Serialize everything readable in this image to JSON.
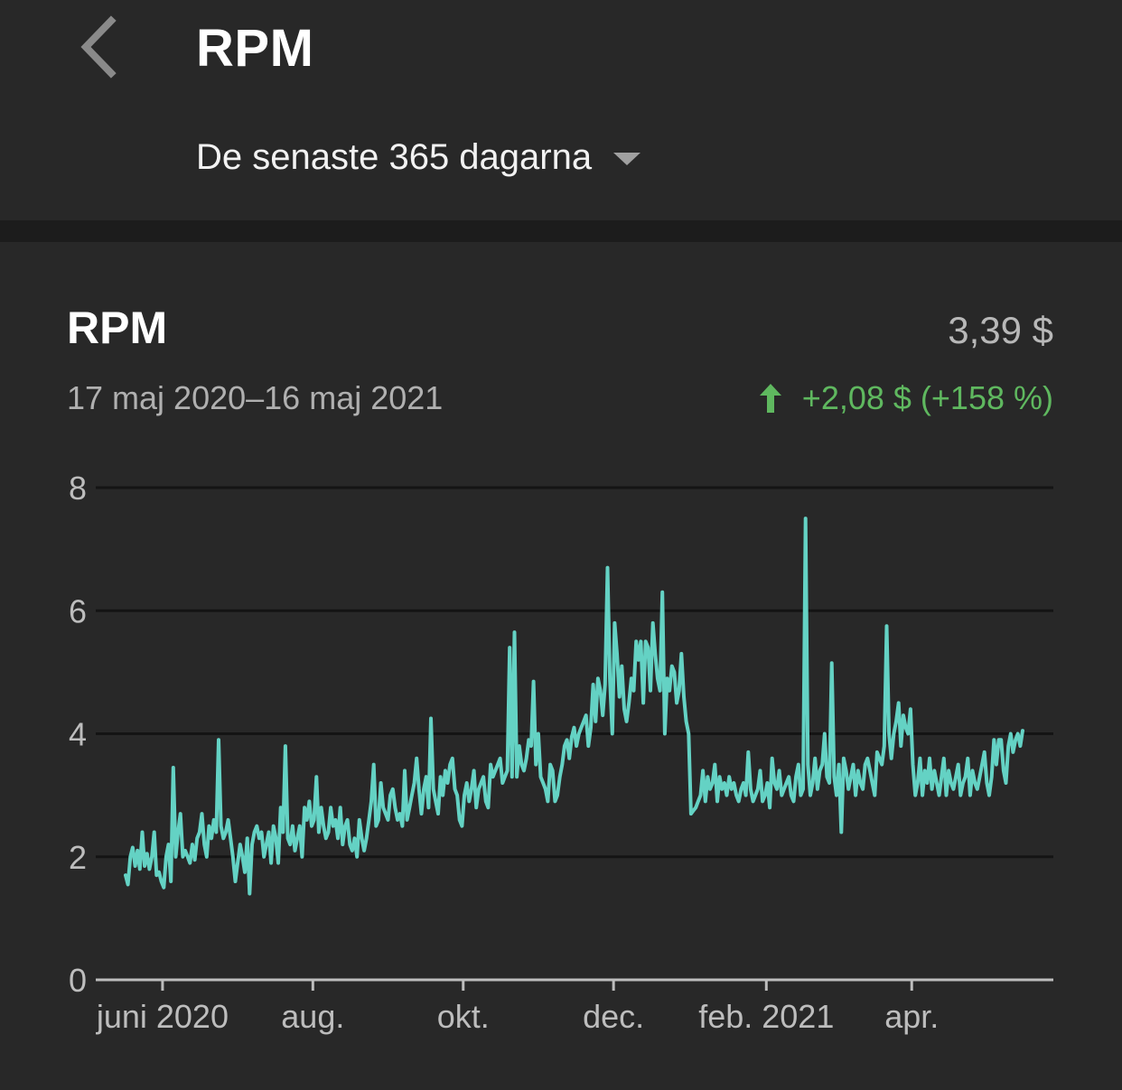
{
  "header": {
    "title": "RPM",
    "period": "De senaste 365 dagarna"
  },
  "card": {
    "title": "RPM",
    "value": "3,39 $",
    "date_range": "17 maj 2020–16 maj 2021",
    "change": "+2,08 $ (+158 %)"
  },
  "colors": {
    "background": "#282828",
    "line": "#64d2c4",
    "positive": "#5fb85f",
    "grid": "#141414",
    "axis": "#bdbdbd"
  },
  "icons": {
    "back": "chevron-left-icon",
    "dropdown": "caret-down-icon",
    "change": "arrow-up-icon"
  },
  "chart_data": {
    "type": "line",
    "title": "RPM",
    "ylim": [
      0,
      8
    ],
    "yticks": [
      "0",
      "2",
      "4",
      "6",
      "8"
    ],
    "xlim": [
      "2020-05-17",
      "2021-05-16"
    ],
    "xticks": [
      {
        "label": "juni 2020",
        "date": "2020-06-01"
      },
      {
        "label": "aug.",
        "date": "2020-08-01"
      },
      {
        "label": "okt.",
        "date": "2020-10-01"
      },
      {
        "label": "dec.",
        "date": "2020-12-01"
      },
      {
        "label": "feb. 2021",
        "date": "2021-02-01"
      },
      {
        "label": "apr.",
        "date": "2021-04-01"
      }
    ],
    "grid": true,
    "legend": "none",
    "start_date": "2020-05-17",
    "series": [
      {
        "values": [
          1.7,
          1.55,
          2.0,
          2.15,
          1.85,
          2.1,
          1.8,
          2.4,
          1.85,
          2.05,
          1.8,
          2.0,
          2.4,
          1.7,
          1.75,
          1.6,
          1.5,
          2.0,
          2.2,
          1.6,
          3.45,
          2.0,
          2.4,
          2.7,
          2.0,
          2.1,
          2.0,
          1.9,
          2.2,
          1.95,
          2.3,
          2.4,
          2.7,
          2.2,
          2.0,
          2.5,
          2.3,
          2.6,
          2.4,
          3.9,
          2.5,
          2.3,
          2.4,
          2.6,
          2.3,
          2.0,
          1.6,
          1.9,
          2.2,
          2.0,
          1.75,
          2.3,
          1.4,
          2.2,
          2.4,
          2.5,
          2.3,
          2.4,
          2.0,
          2.2,
          2.4,
          1.9,
          2.5,
          2.3,
          1.9,
          2.8,
          2.4,
          3.8,
          2.3,
          2.2,
          2.5,
          2.1,
          2.3,
          2.5,
          2.0,
          2.8,
          2.6,
          2.9,
          2.5,
          2.6,
          3.3,
          2.4,
          2.8,
          2.5,
          2.3,
          2.4,
          2.8,
          2.5,
          2.6,
          2.3,
          2.8,
          2.2,
          2.5,
          2.6,
          2.2,
          2.1,
          2.3,
          2.0,
          2.6,
          2.3,
          2.1,
          2.3,
          2.6,
          2.9,
          3.5,
          2.5,
          2.6,
          3.2,
          2.8,
          2.7,
          2.6,
          3.0,
          3.1,
          2.8,
          2.6,
          2.7,
          2.5,
          3.4,
          2.6,
          2.8,
          3.0,
          3.2,
          3.6,
          3.1,
          2.7,
          3.1,
          3.3,
          2.8,
          4.25,
          3.1,
          2.9,
          2.7,
          3.3,
          3.0,
          3.4,
          3.2,
          3.5,
          3.6,
          3.1,
          3.0,
          2.6,
          2.5,
          3.0,
          3.2,
          2.9,
          3.1,
          3.4,
          2.8,
          3.1,
          3.2,
          3.3,
          2.9,
          2.8,
          3.5,
          3.3,
          3.4,
          3.5,
          3.6,
          3.2,
          3.3,
          3.4,
          5.4,
          3.3,
          5.65,
          3.3,
          3.8,
          3.5,
          3.4,
          3.6,
          3.9,
          3.8,
          4.85,
          3.5,
          4.0,
          3.3,
          3.2,
          3.1,
          2.9,
          3.5,
          3.4,
          2.9,
          3.0,
          3.3,
          3.5,
          3.8,
          3.9,
          3.6,
          3.95,
          4.1,
          3.8,
          4.0,
          4.1,
          4.2,
          4.3,
          3.8,
          4.1,
          4.8,
          4.2,
          4.9,
          4.7,
          4.3,
          4.8,
          6.7,
          4.9,
          4.0,
          5.8,
          5.3,
          4.6,
          5.1,
          4.4,
          4.2,
          4.5,
          4.9,
          4.7,
          5.5,
          5.2,
          5.5,
          4.5,
          5.5,
          5.4,
          4.7,
          5.8,
          5.3,
          4.9,
          4.7,
          6.3,
          4.0,
          4.9,
          4.7,
          5.1,
          5.0,
          4.5,
          4.7,
          5.3,
          4.6,
          4.2,
          4.0,
          2.7,
          2.75,
          2.8,
          2.9,
          3.0,
          3.4,
          2.9,
          3.3,
          3.1,
          3.2,
          3.5,
          2.9,
          3.3,
          3.1,
          3.2,
          3.0,
          3.3,
          3.1,
          3.2,
          3.0,
          2.9,
          3.1,
          3.2,
          3.0,
          3.7,
          3.1,
          2.9,
          3.0,
          3.1,
          3.4,
          2.9,
          3.0,
          3.2,
          2.8,
          3.6,
          3.2,
          3.1,
          3.4,
          3.0,
          3.1,
          3.2,
          3.3,
          3.0,
          2.9,
          3.3,
          3.5,
          3.0,
          3.1,
          7.5,
          3.5,
          3.0,
          3.2,
          3.6,
          3.1,
          3.4,
          3.5,
          4.0,
          3.3,
          3.2,
          5.15,
          3.3,
          3.0,
          3.5,
          2.4,
          3.6,
          3.4,
          3.1,
          3.3,
          3.5,
          3.0,
          3.4,
          3.2,
          3.1,
          3.5,
          3.6,
          3.4,
          3.2,
          3.0,
          3.7,
          3.6,
          3.5,
          3.8,
          5.75,
          4.0,
          3.6,
          4.0,
          4.2,
          4.5,
          3.8,
          4.3,
          4.1,
          4.0,
          4.4,
          3.5,
          3.0,
          3.2,
          3.6,
          3.0,
          3.4,
          3.2,
          3.6,
          3.1,
          3.4,
          3.2,
          3.0,
          3.3,
          3.6,
          3.0,
          3.4,
          3.2,
          3.1,
          3.3,
          3.5,
          3.0,
          3.2,
          3.3,
          3.6,
          3.0,
          3.4,
          3.2,
          3.1,
          3.3,
          3.5,
          3.7,
          3.2,
          3.0,
          3.3,
          3.9,
          3.5,
          3.9,
          3.9,
          3.4,
          3.2,
          3.8,
          4.0,
          3.7,
          3.9,
          4.0,
          3.8,
          4.05
        ]
      }
    ]
  }
}
